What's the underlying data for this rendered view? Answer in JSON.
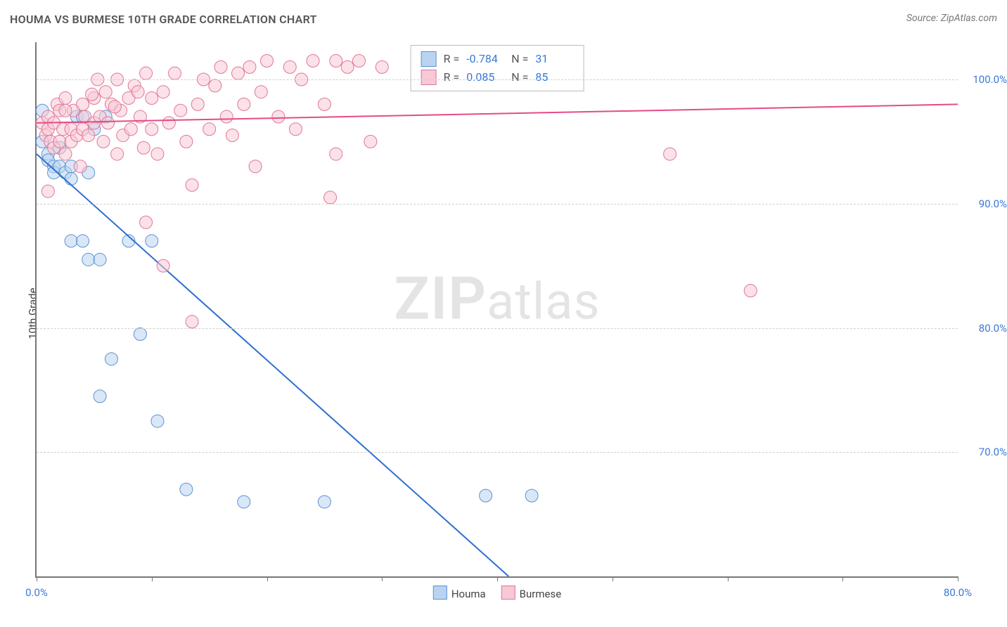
{
  "header": {
    "title": "HOUMA VS BURMESE 10TH GRADE CORRELATION CHART",
    "source": "Source: ZipAtlas.com"
  },
  "watermark": {
    "bold": "ZIP",
    "rest": "atlas"
  },
  "chart": {
    "type": "scatter",
    "ylabel": "10th Grade",
    "background_color": "#ffffff",
    "grid_color": "#d0d0d0",
    "axis_color": "#777777",
    "xlim": [
      0,
      80
    ],
    "ylim": [
      60,
      103
    ],
    "x_ticks": [
      0,
      10,
      20,
      30,
      40,
      50,
      60,
      70,
      80
    ],
    "x_tick_labels": {
      "0": "0.0%",
      "80": "80.0%"
    },
    "x_label_color": "#3a78d6",
    "y_ticks": [
      70,
      80,
      90,
      100
    ],
    "y_tick_labels": {
      "70": "70.0%",
      "80": "80.0%",
      "90": "90.0%",
      "100": "100.0%"
    },
    "y_label_color": "#3a78d6",
    "marker_radius": 9,
    "marker_opacity": 0.55,
    "line_width": 2,
    "series": [
      {
        "name": "Houma",
        "color_fill": "#b9d4f0",
        "color_stroke": "#5a93d1",
        "line_color": "#2f6fd0",
        "regression": {
          "x1": 0,
          "y1": 94.0,
          "x2": 41,
          "y2": 60.0
        },
        "R": "-0.784",
        "N": "31",
        "points": [
          [
            0.5,
            97.5
          ],
          [
            0.5,
            95.0
          ],
          [
            1.0,
            94.0
          ],
          [
            1.0,
            93.5
          ],
          [
            1.5,
            93.0
          ],
          [
            1.5,
            92.5
          ],
          [
            2.0,
            94.5
          ],
          [
            2.0,
            93.0
          ],
          [
            2.5,
            92.5
          ],
          [
            3.0,
            93.0
          ],
          [
            3.5,
            97.0
          ],
          [
            4.0,
            97.0
          ],
          [
            5.0,
            96.0
          ],
          [
            6.0,
            97.0
          ],
          [
            3.0,
            87.0
          ],
          [
            4.0,
            87.0
          ],
          [
            4.5,
            85.5
          ],
          [
            5.5,
            85.5
          ],
          [
            8.0,
            87.0
          ],
          [
            10.0,
            87.0
          ],
          [
            6.5,
            77.5
          ],
          [
            9.0,
            79.5
          ],
          [
            5.5,
            74.5
          ],
          [
            10.5,
            72.5
          ],
          [
            13.0,
            67.0
          ],
          [
            18.0,
            66.0
          ],
          [
            25.0,
            66.0
          ],
          [
            39.0,
            66.5
          ],
          [
            43.0,
            66.5
          ],
          [
            3.0,
            92.0
          ],
          [
            4.5,
            92.5
          ]
        ]
      },
      {
        "name": "Burmese",
        "color_fill": "#f7c8d6",
        "color_stroke": "#e07797",
        "line_color": "#e64a87",
        "regression": {
          "x1": 0,
          "y1": 96.5,
          "x2": 80,
          "y2": 98.0
        },
        "R": "0.085",
        "N": "85",
        "points": [
          [
            0.5,
            96.5
          ],
          [
            0.8,
            95.5
          ],
          [
            1.0,
            96.0
          ],
          [
            1.0,
            97.0
          ],
          [
            1.2,
            95.0
          ],
          [
            1.5,
            96.5
          ],
          [
            1.5,
            94.5
          ],
          [
            1.8,
            98.0
          ],
          [
            2.0,
            95.0
          ],
          [
            2.0,
            97.5
          ],
          [
            2.3,
            96.0
          ],
          [
            2.5,
            94.0
          ],
          [
            2.5,
            98.5
          ],
          [
            3.0,
            96.0
          ],
          [
            3.0,
            95.0
          ],
          [
            3.2,
            97.5
          ],
          [
            3.5,
            95.5
          ],
          [
            3.8,
            93.0
          ],
          [
            4.0,
            98.0
          ],
          [
            4.0,
            96.0
          ],
          [
            4.2,
            97.0
          ],
          [
            4.5,
            95.5
          ],
          [
            5.0,
            98.5
          ],
          [
            5.0,
            96.5
          ],
          [
            5.3,
            100.0
          ],
          [
            5.5,
            97.0
          ],
          [
            5.8,
            95.0
          ],
          [
            6.0,
            99.0
          ],
          [
            6.2,
            96.5
          ],
          [
            6.5,
            98.0
          ],
          [
            7.0,
            94.0
          ],
          [
            7.0,
            100.0
          ],
          [
            7.3,
            97.5
          ],
          [
            7.5,
            95.5
          ],
          [
            8.0,
            98.5
          ],
          [
            8.2,
            96.0
          ],
          [
            8.5,
            99.5
          ],
          [
            9.0,
            97.0
          ],
          [
            9.3,
            94.5
          ],
          [
            9.5,
            100.5
          ],
          [
            10.0,
            96.0
          ],
          [
            10.0,
            98.5
          ],
          [
            10.5,
            94.0
          ],
          [
            11.0,
            99.0
          ],
          [
            11.5,
            96.5
          ],
          [
            12.0,
            100.5
          ],
          [
            12.5,
            97.5
          ],
          [
            13.0,
            95.0
          ],
          [
            13.5,
            91.5
          ],
          [
            14.0,
            98.0
          ],
          [
            14.5,
            100.0
          ],
          [
            15.0,
            96.0
          ],
          [
            15.5,
            99.5
          ],
          [
            16.0,
            101.0
          ],
          [
            16.5,
            97.0
          ],
          [
            17.0,
            95.5
          ],
          [
            17.5,
            100.5
          ],
          [
            18.0,
            98.0
          ],
          [
            18.5,
            101.0
          ],
          [
            19.0,
            93.0
          ],
          [
            19.5,
            99.0
          ],
          [
            20.0,
            101.5
          ],
          [
            21.0,
            97.0
          ],
          [
            22.0,
            101.0
          ],
          [
            22.5,
            96.0
          ],
          [
            23.0,
            100.0
          ],
          [
            24.0,
            101.5
          ],
          [
            25.0,
            98.0
          ],
          [
            26.0,
            94.0
          ],
          [
            26.0,
            101.5
          ],
          [
            27.0,
            101.0
          ],
          [
            28.0,
            101.5
          ],
          [
            29.0,
            95.0
          ],
          [
            30.0,
            101.0
          ],
          [
            25.5,
            90.5
          ],
          [
            9.5,
            88.5
          ],
          [
            11.0,
            85.0
          ],
          [
            13.5,
            80.5
          ],
          [
            1.0,
            91.0
          ],
          [
            2.5,
            97.5
          ],
          [
            55.0,
            94.0
          ],
          [
            62.0,
            83.0
          ],
          [
            4.8,
            98.8
          ],
          [
            6.8,
            97.8
          ],
          [
            8.8,
            99.0
          ]
        ]
      }
    ],
    "legend": {
      "items": [
        {
          "label": "Houma",
          "fill": "#b9d4f0",
          "stroke": "#5a93d1"
        },
        {
          "label": "Burmese",
          "fill": "#f7c8d6",
          "stroke": "#e07797"
        }
      ]
    }
  }
}
